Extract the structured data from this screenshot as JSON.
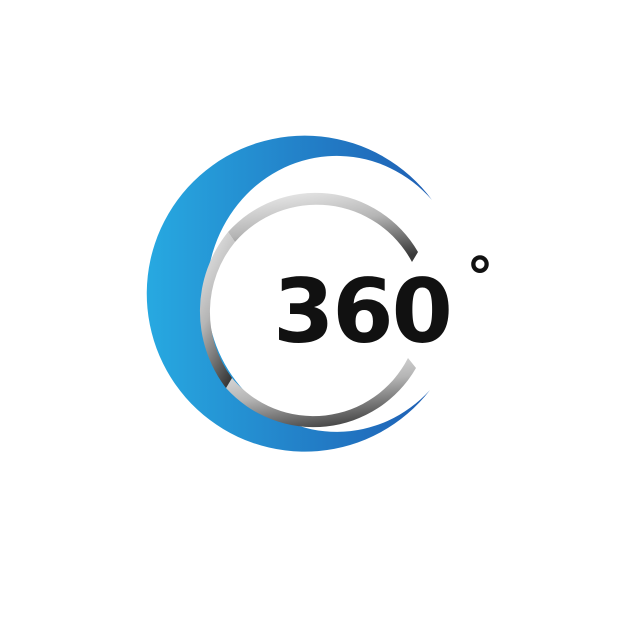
{
  "logo": {
    "number": "360",
    "degree_symbol": "°",
    "colors": {
      "outer_arc_light": "#27a9e1",
      "outer_arc_dark": "#1f5fb4",
      "inner_arc_light": "#e3e3e3",
      "inner_arc_dark": "#3c3c3c",
      "text": "#111111",
      "background": "#ffffff"
    }
  }
}
